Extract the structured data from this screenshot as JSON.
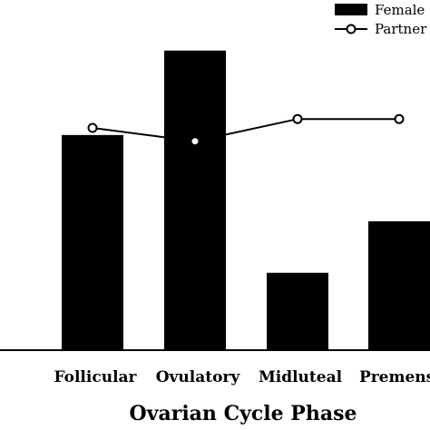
{
  "chart_data": {
    "type": "bar",
    "categories": [
      "Follicular",
      "Ovulatory",
      "Midluteal",
      "Premenstr"
    ],
    "series": [
      {
        "name": "Female",
        "kind": "bar",
        "values": [
          2.42,
          3.37,
          0.87,
          1.45
        ]
      },
      {
        "name": "Partner",
        "kind": "line",
        "values": [
          2.5,
          2.35,
          2.6,
          2.6
        ]
      }
    ],
    "xlabel": "Ovarian Cycle Phase",
    "ylabel": "",
    "ylim": [
      0,
      3.5
    ],
    "grid": false,
    "legend": "top-right",
    "colors": {
      "bar": "#000000",
      "line": "#000000",
      "marker_fill": "#ffffff"
    }
  }
}
